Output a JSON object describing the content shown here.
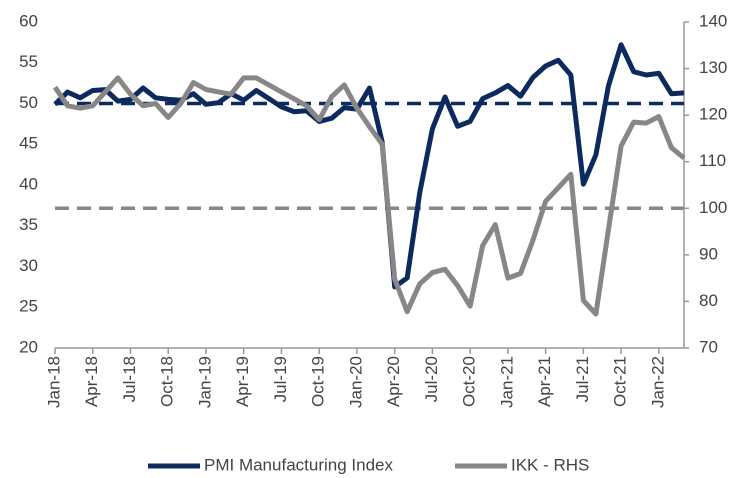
{
  "chart_data": {
    "type": "line",
    "categories": [
      "Jan-18",
      null,
      null,
      "Apr-18",
      null,
      null,
      "Jul-18",
      null,
      null,
      "Oct-18",
      null,
      null,
      "Jan-19",
      null,
      null,
      "Apr-19",
      null,
      null,
      "Jul-19",
      null,
      null,
      "Oct-19",
      null,
      null,
      "Jan-20",
      null,
      null,
      "Apr-20",
      null,
      null,
      "Jul-20",
      null,
      null,
      "Oct-20",
      null,
      null,
      "Jan-21",
      null,
      null,
      "Apr-21",
      null,
      null,
      "Jul-21",
      null,
      null,
      "Oct-21",
      null,
      null,
      "Jan-22",
      null,
      null
    ],
    "series": [
      {
        "name": "PMI Manufacturing Index",
        "color": "#0d2a5e",
        "values": [
          49.9,
          51.4,
          50.7,
          51.6,
          51.7,
          50.3,
          50.5,
          51.9,
          50.7,
          50.5,
          50.4,
          51.2,
          49.9,
          50.1,
          51.2,
          50.4,
          51.6,
          50.6,
          49.6,
          49.0,
          49.1,
          47.8,
          48.2,
          49.5,
          49.3,
          51.9,
          45.3,
          27.5,
          28.6,
          39.1,
          46.9,
          50.8,
          47.2,
          47.8,
          50.6,
          51.3,
          52.2,
          50.9,
          53.2,
          54.6,
          55.3,
          53.5,
          40.1,
          43.7,
          52.2,
          57.2,
          53.9,
          53.5,
          53.7,
          51.2,
          51.3
        ]
      },
      {
        "name": "IKK - RHS",
        "color": "#878787",
        "axis": "y2",
        "values": [
          126,
          122,
          121.5,
          122,
          125,
          128,
          124.5,
          122,
          122.5,
          119.5,
          122.5,
          127,
          125.5,
          125,
          124.5,
          128,
          128,
          126.5,
          125,
          123.5,
          122,
          119,
          124,
          126.5,
          121.5,
          117.5,
          113.8,
          84.8,
          77.8,
          83.8,
          86.2,
          86.9,
          83.4,
          79,
          92,
          96.5,
          85,
          86,
          93.2,
          101.5,
          104.4,
          107.3,
          80.2,
          77.3,
          95.5,
          113.4,
          118.5,
          118.3,
          119.7,
          113,
          110.8
        ]
      }
    ],
    "reference_lines": [
      {
        "value": 50,
        "color": "#0d2a5e"
      },
      {
        "value": 100,
        "axis": "y2",
        "color": "#878787"
      }
    ],
    "ylim": [
      20,
      60
    ],
    "yticks": [
      20,
      25,
      30,
      35,
      40,
      45,
      50,
      55,
      60
    ],
    "y2lim": [
      70,
      140
    ],
    "y2ticks": [
      70,
      80,
      90,
      100,
      110,
      120,
      130,
      140
    ],
    "grid": false,
    "legend": "bottom"
  }
}
